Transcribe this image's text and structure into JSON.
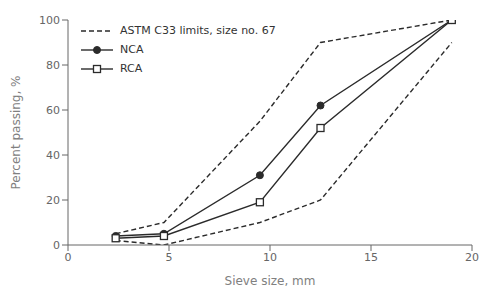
{
  "chart_data": {
    "type": "line",
    "xlabel": "Sieve size, mm",
    "ylabel": "Percent passing, %",
    "x": [
      2.36,
      4.75,
      9.5,
      12.5,
      19.0
    ],
    "series": [
      {
        "name": "ASTM C33 limits, size no. 67",
        "color": "#2b2b2b",
        "line_style": "dashed",
        "values": [
          5,
          10,
          55,
          90,
          100
        ]
      },
      {
        "name": "ASTM C33 limits, size no. 67",
        "color": "#2b2b2b",
        "line_style": "dashed",
        "values": [
          2,
          0,
          10,
          20,
          90
        ]
      },
      {
        "name": "NCA",
        "color": "#2b2b2b",
        "line_style": "solid",
        "marker": "circle",
        "values": [
          4,
          5,
          31,
          62,
          100
        ]
      },
      {
        "name": "RCA",
        "color": "#2b2b2b",
        "line_style": "solid",
        "marker": "square",
        "values": [
          3,
          4,
          19,
          52,
          100
        ]
      }
    ],
    "xlim": [
      0,
      20
    ],
    "ylim": [
      0,
      100
    ],
    "xticks": [
      0,
      5,
      10,
      15,
      20
    ],
    "yticks": [
      0,
      20,
      40,
      60,
      80,
      100
    ],
    "grid": false,
    "legend": "upper left"
  }
}
